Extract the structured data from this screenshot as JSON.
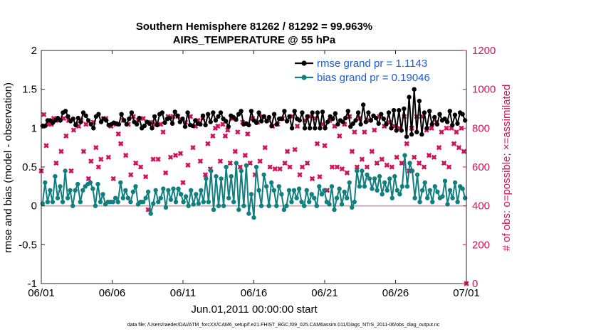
{
  "chart_data": {
    "type": "line",
    "title_line1": "Southern Hemisphere 81262 / 81292 = 99.963%",
    "title_line2": "AIRS_TEMPERATURE @ 55 hPa",
    "xlabel": "Jun.01,2011 00:00:00 start",
    "ylabel_left": "rmse and bias (model - observation)",
    "ylabel_right": "# of obs: o=possible; ×=assimilated",
    "x_ticks": [
      "06/01",
      "06/06",
      "06/11",
      "06/16",
      "06/21",
      "06/26",
      "07/01"
    ],
    "x_range_days": [
      0,
      30
    ],
    "ylim_left": [
      -1,
      2
    ],
    "yticks_left": [
      "-1",
      "-0.5",
      "0",
      "0.5",
      "1",
      "1.5",
      "2"
    ],
    "ylim_right": [
      0,
      1200
    ],
    "yticks_right": [
      "0",
      "200",
      "400",
      "600",
      "800",
      "1000",
      "1200"
    ],
    "legend_position": "top-right",
    "colors": {
      "rmse": "#000000",
      "bias": "#0f7f7f",
      "obs": "#d3145a",
      "legend_text": "#1a5cd6",
      "zero_line": "#c9a0a8"
    },
    "series": [
      {
        "name": "rmse grand pr = 1.1143",
        "values": [
          1.03,
          1.03,
          1.1,
          1.1,
          1.07,
          1.1,
          1.13,
          1.1,
          1.2,
          1.22,
          1.15,
          1.09,
          1.12,
          1.04,
          1.13,
          1.08,
          1.2,
          1.16,
          1.1,
          1.05,
          1.0,
          1.15,
          1.18,
          1.08,
          1.12,
          1.1,
          1.04,
          1.05,
          1.07,
          1.06,
          1.05,
          1.18,
          1.1,
          1.05,
          1.12,
          1.2,
          1.08,
          1.05,
          1.13,
          1.0,
          1.03,
          1.08,
          1.06,
          1.0,
          1.15,
          1.04,
          1.18,
          1.2,
          1.07,
          1.12,
          1.13,
          1.06,
          1.21,
          1.16,
          1.08,
          1.12,
          1.02,
          1.2,
          1.04,
          1.03,
          1.1,
          1.06,
          1.05,
          1.16,
          1.04,
          1.18,
          1.08,
          1.2,
          1.1,
          1.15,
          1.2,
          1.12,
          1.09,
          1.02,
          1.16,
          1.14,
          1.11,
          1.18,
          1.22,
          1.05,
          1.06,
          1.04,
          1.22,
          1.1,
          1.07,
          1.2,
          1.09,
          1.15,
          1.09,
          1.14,
          1.03,
          1.18,
          1.05,
          1.12,
          1.12,
          1.22,
          1.09,
          1.15,
          1.0,
          1.22,
          1.12,
          1.1,
          1.2,
          1.0,
          1.15,
          1.0,
          1.2,
          1.0,
          1.2,
          1.0,
          1.21,
          1.0,
          1.08,
          1.15,
          1.12,
          1.19,
          1.05,
          1.1,
          1.08,
          1.13,
          1.22,
          1.02,
          1.06,
          1.1,
          1.2,
          1.05,
          1.3,
          1.08,
          1.2,
          1.1,
          1.16,
          1.13,
          1.06,
          1.18,
          1.12,
          1.05,
          1.2,
          1.0,
          1.23,
          0.97,
          1.23,
          0.97,
          1.25,
          0.89,
          1.4,
          0.92,
          1.5,
          0.95,
          1.35,
          0.92,
          1.2,
          1.0,
          1.22,
          1.05,
          1.14,
          1.05,
          1.18,
          1.1,
          1.12,
          1.08,
          1.22,
          1.04,
          1.17,
          1.06,
          1.2,
          1.18,
          1.1
        ]
      },
      {
        "name": "bias grand pr = 0.19046",
        "values": [
          0.03,
          0.3,
          0.05,
          0.2,
          0.05,
          0.38,
          0.1,
          0.25,
          0.05,
          0.45,
          0.1,
          0.2,
          0.0,
          0.2,
          0.28,
          0.05,
          0.2,
          0.25,
          0.28,
          0.3,
          0.22,
          0.0,
          0.28,
          0.05,
          0.15,
          0.02,
          0.05,
          0.05,
          0.05,
          0.1,
          0.05,
          0.3,
          0.1,
          0.2,
          0.1,
          0.05,
          0.18,
          0.25,
          0.02,
          0.05,
          0.05,
          0.1,
          0.18,
          -0.1,
          0.03,
          0.2,
          0.05,
          0.1,
          0.22,
          -0.02,
          0.2,
          0.08,
          0.22,
          0.05,
          0.22,
          0.15,
          0.05,
          0.12,
          0.0,
          0.2,
          0.02,
          0.15,
          0.03,
          0.2,
          0.05,
          0.35,
          0.05,
          0.45,
          -0.05,
          0.38,
          0.0,
          0.35,
          0.0,
          0.5,
          0.1,
          0.38,
          0.05,
          0.55,
          -0.05,
          0.45,
          0.0,
          0.52,
          -0.1,
          0.15,
          -0.15,
          0.5,
          0.2,
          0.0,
          0.4,
          0.25,
          0.0,
          0.3,
          0.2,
          0.0,
          0.25,
          0.15,
          -0.05,
          0.0,
          0.2,
          0.05,
          0.2,
          0.1,
          0.22,
          0.05,
          0.0,
          0.2,
          0.05,
          0.15,
          0.1,
          0.0,
          0.25,
          0.15,
          0.2,
          0.05,
          0.02,
          0.25,
          -0.05,
          0.1,
          0.22,
          0.02,
          0.18,
          0.1,
          0.3,
          -0.02,
          0.05,
          0.45,
          0.25,
          0.45,
          0.25,
          0.4,
          0.35,
          0.22,
          0.35,
          0.2,
          0.38,
          0.15,
          0.3,
          0.2,
          0.35,
          0.1,
          0.38,
          0.2,
          0.15,
          0.25,
          0.65,
          0.25,
          0.55,
          0.45,
          0.1,
          0.4,
          0.05,
          0.2,
          0.3,
          0.1,
          0.2,
          0.05,
          0.25,
          0.18,
          0.1,
          0.12,
          0.32,
          0.02,
          0.2,
          0.1,
          0.3,
          0.05,
          0.25,
          0.22,
          0.1
        ]
      },
      {
        "name": "# of obs",
        "values": [
          580,
          870,
          710,
          820,
          820,
          850,
          620,
          840,
          680,
          850,
          760,
          840,
          580,
          790,
          820,
          810,
          840,
          680,
          820,
          540,
          630,
          830,
          700,
          600,
          640,
          850,
          850,
          650,
          810,
          540,
          820,
          770,
          720,
          840,
          660,
          820,
          560,
          860,
          620,
          840,
          600,
          850,
          550,
          380,
          830,
          640,
          820,
          640,
          820,
          780,
          570,
          860,
          650,
          860,
          660,
          860,
          670,
          520,
          830,
          610,
          860,
          700,
          810,
          840,
          630,
          850,
          560,
          720,
          590,
          760,
          800,
          810,
          630,
          820,
          760,
          790,
          620,
          850,
          680,
          780,
          600,
          830,
          660,
          770,
          620,
          850,
          560,
          830,
          630,
          860,
          700,
          840,
          600,
          810,
          590,
          820,
          590,
          850,
          620,
          680,
          600,
          860,
          690,
          810,
          560,
          600,
          840,
          620,
          860,
          540,
          850,
          720,
          550,
          820,
          710,
          480,
          840,
          600,
          810,
          600,
          760,
          590,
          820,
          570,
          860,
          680,
          780,
          600,
          850,
          640,
          780,
          600,
          840,
          680,
          790,
          620,
          860,
          640,
          810,
          610,
          830,
          600,
          810,
          650,
          800,
          620,
          860,
          720,
          580,
          800,
          650,
          860,
          620,
          860,
          600,
          790,
          660,
          800,
          650,
          830,
          700,
          780,
          620,
          800,
          600,
          800,
          720,
          780,
          700,
          800,
          680,
          0
        ]
      }
    ]
  },
  "footnote": "data file: /Users/raeder/DAI/ATM_forcXX/CAM6_setup/f.e21.FHIST_BGC.f09_025.CAM6assim.011/Diags_NTrS_2011-06/obs_diag_output.nc"
}
